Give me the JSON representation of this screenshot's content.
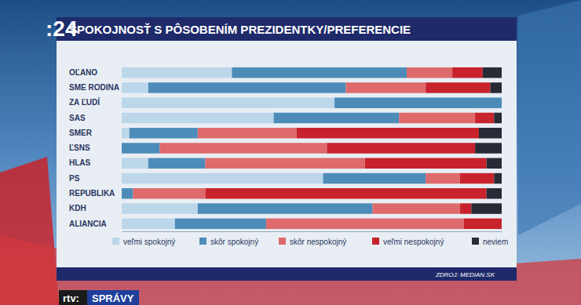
{
  "chart_data": {
    "type": "bar",
    "title": "SPOKOJNOSŤ S PÔSOBENÍM PREZIDENTKY/PREFERENCIE",
    "annotations": [
      ":24",
      "ZDROJ: MEDIAN.SK",
      "rtv:",
      "SPRÁVY"
    ],
    "orientation": "horizontal",
    "stacked": true,
    "legend": "bottom",
    "grid": false,
    "tick_labels": "y",
    "data_labels": false,
    "xlim": [
      0,
      100
    ],
    "categories": [
      "OĽANO",
      "SME RODINA",
      "ZA ĽUDÍ",
      "SAS",
      "SMER",
      "ĽSNS",
      "HLAS",
      "PS",
      "REPUBLIKA",
      "KDH",
      "ALIANCIA"
    ],
    "series": [
      {
        "name": "veľmi spokojný",
        "color": "#bcd6ea",
        "values": [
          29,
          7,
          56,
          40,
          2,
          0,
          7,
          53,
          0,
          20,
          14
        ]
      },
      {
        "name": "skôr spokojný",
        "color": "#4d8cb9",
        "values": [
          46,
          52,
          44,
          33,
          18,
          10,
          15,
          27,
          3,
          46,
          24
        ]
      },
      {
        "name": "skôr nespokojný",
        "color": "#de6a6c",
        "values": [
          12,
          21,
          0,
          20,
          26,
          44,
          42,
          9,
          19,
          23,
          52
        ]
      },
      {
        "name": "veľmi nespokojný",
        "color": "#c8232c",
        "values": [
          8,
          17,
          0,
          5,
          48,
          39,
          32,
          9,
          74,
          3,
          10
        ]
      },
      {
        "name": "neviem",
        "color": "#262b36",
        "values": [
          5,
          3,
          0,
          2,
          6,
          7,
          4,
          2,
          4,
          8,
          0
        ]
      }
    ]
  }
}
